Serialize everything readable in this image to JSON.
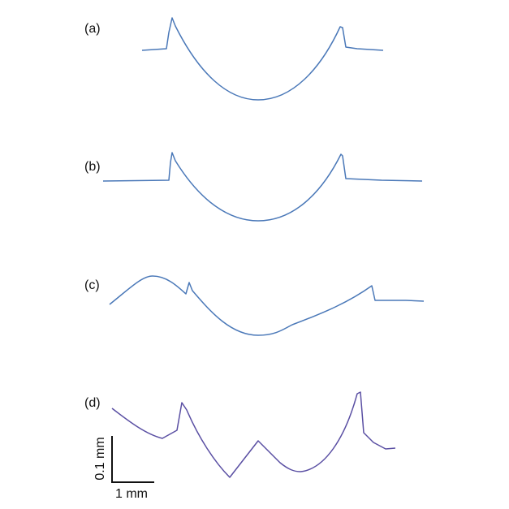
{
  "panels": [
    {
      "label": "(a)"
    },
    {
      "label": "(b)"
    },
    {
      "label": "(c)"
    },
    {
      "label": "(d)"
    }
  ],
  "scale_bar": {
    "vertical_label": "0.1 mm",
    "horizontal_label": "1 mm"
  }
}
